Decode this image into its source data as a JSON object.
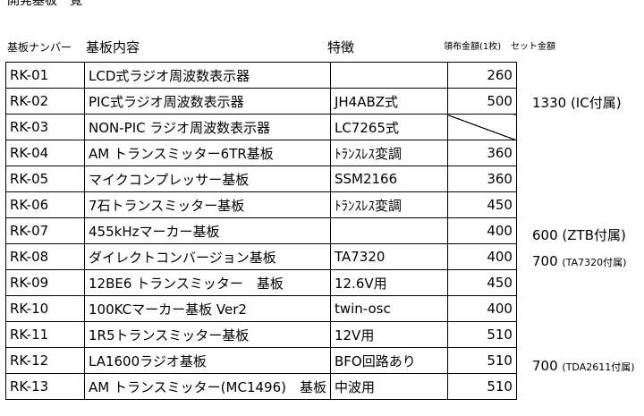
{
  "title": "開発基板一覧",
  "headers": {
    "number": "基板ナンバー",
    "content": "基板内容",
    "feature": "特徴",
    "price": "領布金額(1枚)",
    "set_price": "セット金額"
  },
  "rows": [
    {
      "number": "RK-01",
      "content": "LCD式ラジオ周波数表示器",
      "feature": "",
      "price": "260",
      "set": ""
    },
    {
      "number": "RK-02",
      "content": "PIC式ラジオ周波数表示器",
      "feature": "JH4ABZ式",
      "price": "500",
      "set": "1330 (IC付属)"
    },
    {
      "number": "RK-03",
      "content": "NON-PIC ラジオ周波数表示器",
      "feature": "LC7265式",
      "price": "",
      "set": ""
    },
    {
      "number": "RK-04",
      "content": "AM トランスミッター6TR基板",
      "feature": "ﾄﾗﾝｽﾚｽ変調",
      "price": "360",
      "set": ""
    },
    {
      "number": "RK-05",
      "content": "マイクコンプレッサー基板",
      "feature": "SSM2166",
      "price": "360",
      "set": ""
    },
    {
      "number": "RK-06",
      "content": "7石トランスミッター基板",
      "feature": "ﾄﾗﾝｽﾚｽ変調",
      "price": "450",
      "set": ""
    },
    {
      "number": "RK-07",
      "content": "455kHzマーカー基板",
      "feature": "",
      "price": "400",
      "set": "600 (ZTB付属)"
    },
    {
      "number": "RK-08",
      "content": "ダイレクトコンバージョン基板",
      "feature": "TA7320",
      "price": "400",
      "set_main": "700 ",
      "set_note": "(TA7320付属)"
    },
    {
      "number": "RK-09",
      "content": "12BE6 トランスミッター　基板",
      "feature": "12.6V用",
      "price": "450",
      "set": ""
    },
    {
      "number": "RK-10",
      "content": "100KCマーカー基板 Ver2",
      "feature": "twin-osc",
      "price": "400",
      "set": ""
    },
    {
      "number": "RK-11",
      "content": "1R5トランスミッター基板",
      "feature": "12V用",
      "price": "510",
      "set": ""
    },
    {
      "number": "RK-12",
      "content": "LA1600ラジオ基板",
      "feature": "BFO回路あり",
      "price": "510",
      "set_main": "700 ",
      "set_note": "(TDA2611付属)"
    },
    {
      "number": "RK-13",
      "content": "AM トランスミッター(MC1496)　基板",
      "feature": "中波用",
      "price": "510",
      "set": ""
    }
  ]
}
